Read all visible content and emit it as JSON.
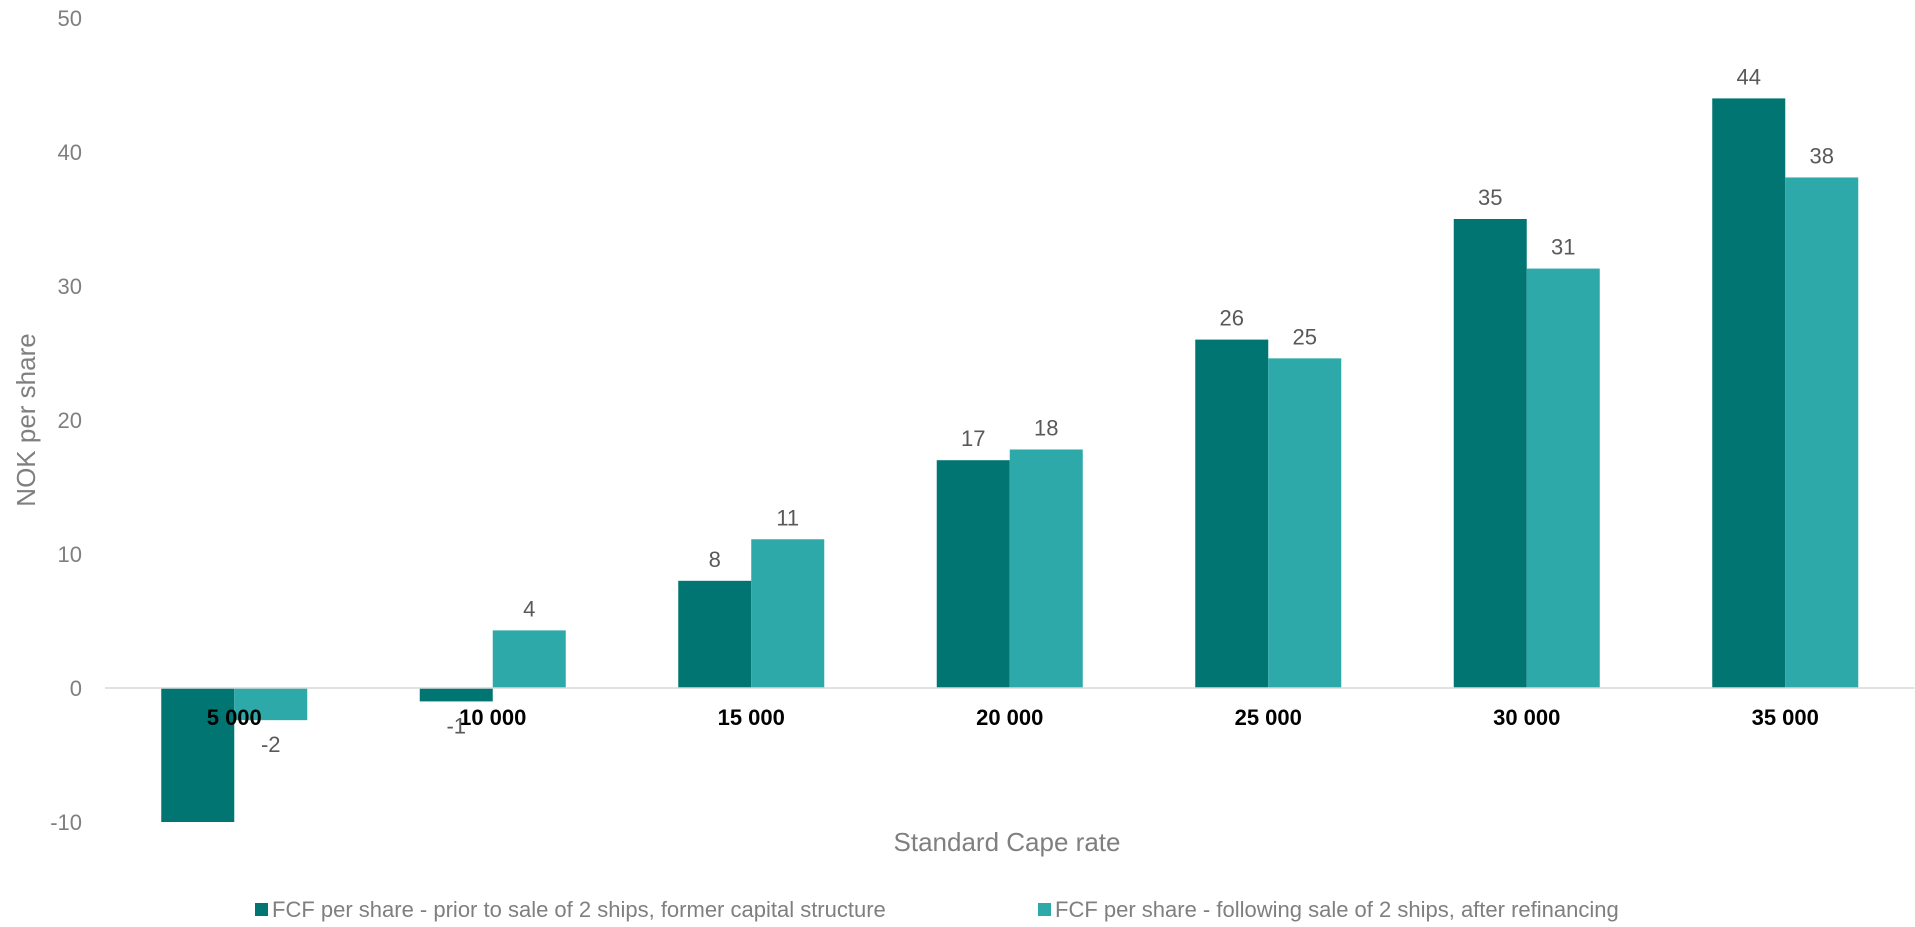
{
  "chart_data": {
    "type": "bar",
    "xlabel": "Standard Cape rate",
    "ylabel": "NOK per share",
    "ylim": [
      -10,
      50
    ],
    "yticks": [
      -10,
      0,
      10,
      20,
      30,
      40,
      50
    ],
    "grid": false,
    "legend_position": "bottom",
    "categories": [
      "5 000",
      "10 000",
      "15 000",
      "20 000",
      "25 000",
      "30 000",
      "35 000"
    ],
    "series": [
      {
        "name": "FCF per share - prior to sale of 2 ships, former capital structure",
        "color": "#017572",
        "values": [
          -10,
          -1,
          8,
          17,
          26,
          35,
          44
        ],
        "labels": [
          "",
          "-1",
          "8",
          "17",
          "26",
          "35",
          "44"
        ]
      },
      {
        "name": "FCF per share - following sale of 2 ships, after refinancing",
        "color": "#2ea9a9",
        "values": [
          -2.4,
          4.3,
          11.1,
          17.8,
          24.6,
          31.3,
          38.1
        ],
        "labels": [
          "-2",
          "4",
          "11",
          "18",
          "25",
          "31",
          "38"
        ]
      }
    ]
  }
}
